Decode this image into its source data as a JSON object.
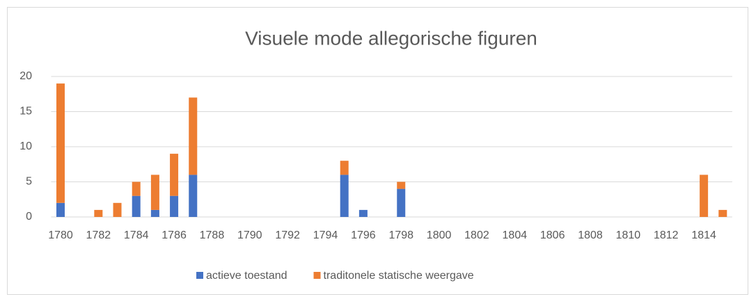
{
  "chart_data": {
    "type": "stacked_bar",
    "title": "Visuele mode allegorische figuren",
    "categories": [
      "1780",
      null,
      "1782",
      null,
      "1784",
      null,
      "1786",
      null,
      "1788",
      null,
      "1790",
      null,
      "1792",
      null,
      "1794",
      null,
      "1796",
      null,
      "1798",
      null,
      "1800",
      null,
      "1802",
      null,
      "1804",
      null,
      "1806",
      null,
      "1808",
      null,
      "1810",
      null,
      "1812",
      null,
      "1814",
      null
    ],
    "series": [
      {
        "name": "actieve toestand",
        "color": "#4472c4",
        "values": [
          2,
          0,
          0,
          0,
          3,
          1,
          3,
          6,
          0,
          0,
          0,
          0,
          0,
          0,
          0,
          6,
          1,
          0,
          4,
          0,
          0,
          0,
          0,
          0,
          0,
          0,
          0,
          0,
          0,
          0,
          0,
          0,
          0,
          0,
          0,
          0
        ]
      },
      {
        "name": "traditonele statische weergave",
        "color": "#ed7d31",
        "values": [
          17,
          0,
          1,
          2,
          2,
          5,
          6,
          11,
          0,
          0,
          0,
          0,
          0,
          0,
          0,
          2,
          0,
          0,
          1,
          0,
          0,
          0,
          0,
          0,
          0,
          0,
          0,
          0,
          0,
          0,
          0,
          0,
          0,
          0,
          6,
          1
        ]
      }
    ],
    "ylim": [
      0,
      20
    ],
    "yticks": [
      0,
      5,
      10,
      15,
      20
    ],
    "grid": true,
    "legend": "bottom"
  }
}
